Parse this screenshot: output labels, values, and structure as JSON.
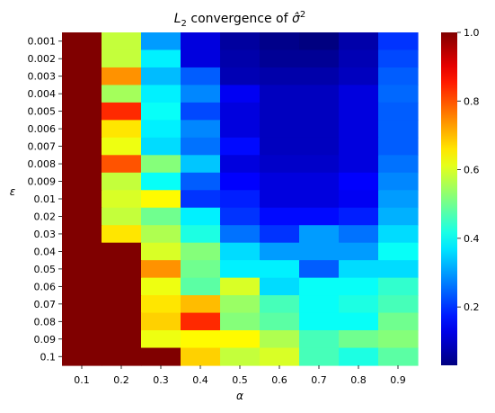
{
  "chart_data": {
    "type": "heatmap",
    "title_prefix": "L",
    "title_subscript": "2",
    "title_rest": " convergence of ",
    "title_symbol": "σ̂",
    "title_superscript": "2",
    "xlabel": "α",
    "ylabel": "ε",
    "x_categories": [
      "0.1",
      "0.2",
      "0.3",
      "0.4",
      "0.5",
      "0.6",
      "0.7",
      "0.8",
      "0.9"
    ],
    "y_categories": [
      "0.001",
      "0.002",
      "0.003",
      "0.004",
      "0.005",
      "0.006",
      "0.007",
      "0.008",
      "0.009",
      "0.01",
      "0.02",
      "0.03",
      "0.04",
      "0.05",
      "0.06",
      "0.07",
      "0.08",
      "0.09",
      "0.1"
    ],
    "values": [
      [
        1.0,
        0.58,
        0.3,
        0.12,
        0.06,
        0.04,
        0.03,
        0.07,
        0.2
      ],
      [
        1.0,
        0.58,
        0.38,
        0.12,
        0.07,
        0.05,
        0.05,
        0.08,
        0.22
      ],
      [
        1.0,
        0.74,
        0.33,
        0.24,
        0.08,
        0.07,
        0.07,
        0.09,
        0.24
      ],
      [
        1.0,
        0.55,
        0.38,
        0.28,
        0.14,
        0.09,
        0.09,
        0.12,
        0.25
      ],
      [
        1.0,
        0.84,
        0.4,
        0.22,
        0.12,
        0.09,
        0.09,
        0.12,
        0.24
      ],
      [
        1.0,
        0.66,
        0.38,
        0.28,
        0.12,
        0.09,
        0.09,
        0.12,
        0.24
      ],
      [
        1.0,
        0.62,
        0.36,
        0.26,
        0.16,
        0.09,
        0.09,
        0.12,
        0.24
      ],
      [
        1.0,
        0.8,
        0.52,
        0.34,
        0.12,
        0.1,
        0.1,
        0.12,
        0.26
      ],
      [
        1.0,
        0.58,
        0.4,
        0.24,
        0.15,
        0.12,
        0.12,
        0.15,
        0.28
      ],
      [
        1.0,
        0.6,
        0.64,
        0.2,
        0.18,
        0.12,
        0.12,
        0.14,
        0.3
      ],
      [
        1.0,
        0.58,
        0.5,
        0.38,
        0.2,
        0.16,
        0.16,
        0.18,
        0.32
      ],
      [
        1.0,
        0.66,
        0.56,
        0.42,
        0.26,
        0.2,
        0.3,
        0.26,
        0.36
      ],
      [
        1.0,
        1.0,
        0.6,
        0.52,
        0.36,
        0.3,
        0.3,
        0.3,
        0.4
      ],
      [
        1.0,
        1.0,
        0.74,
        0.5,
        0.38,
        0.38,
        0.24,
        0.36,
        0.36
      ],
      [
        1.0,
        1.0,
        0.62,
        0.48,
        0.6,
        0.36,
        0.4,
        0.4,
        0.44
      ],
      [
        1.0,
        1.0,
        0.66,
        0.7,
        0.54,
        0.46,
        0.4,
        0.42,
        0.46
      ],
      [
        1.0,
        1.0,
        0.68,
        0.84,
        0.52,
        0.48,
        0.4,
        0.4,
        0.5
      ],
      [
        1.0,
        1.0,
        0.62,
        0.64,
        0.64,
        0.56,
        0.46,
        0.5,
        0.52
      ],
      [
        1.0,
        1.0,
        1.0,
        0.68,
        0.58,
        0.6,
        0.46,
        0.42,
        0.48
      ]
    ],
    "colormap": "jet",
    "vmin": 0.03,
    "vmax": 1.0,
    "colorbar_ticks": [
      0.2,
      0.4,
      0.6,
      0.8,
      1.0
    ],
    "colorbar_tick_labels": [
      "0.2",
      "0.4",
      "0.6",
      "0.8",
      "1.0"
    ],
    "grid": false
  }
}
